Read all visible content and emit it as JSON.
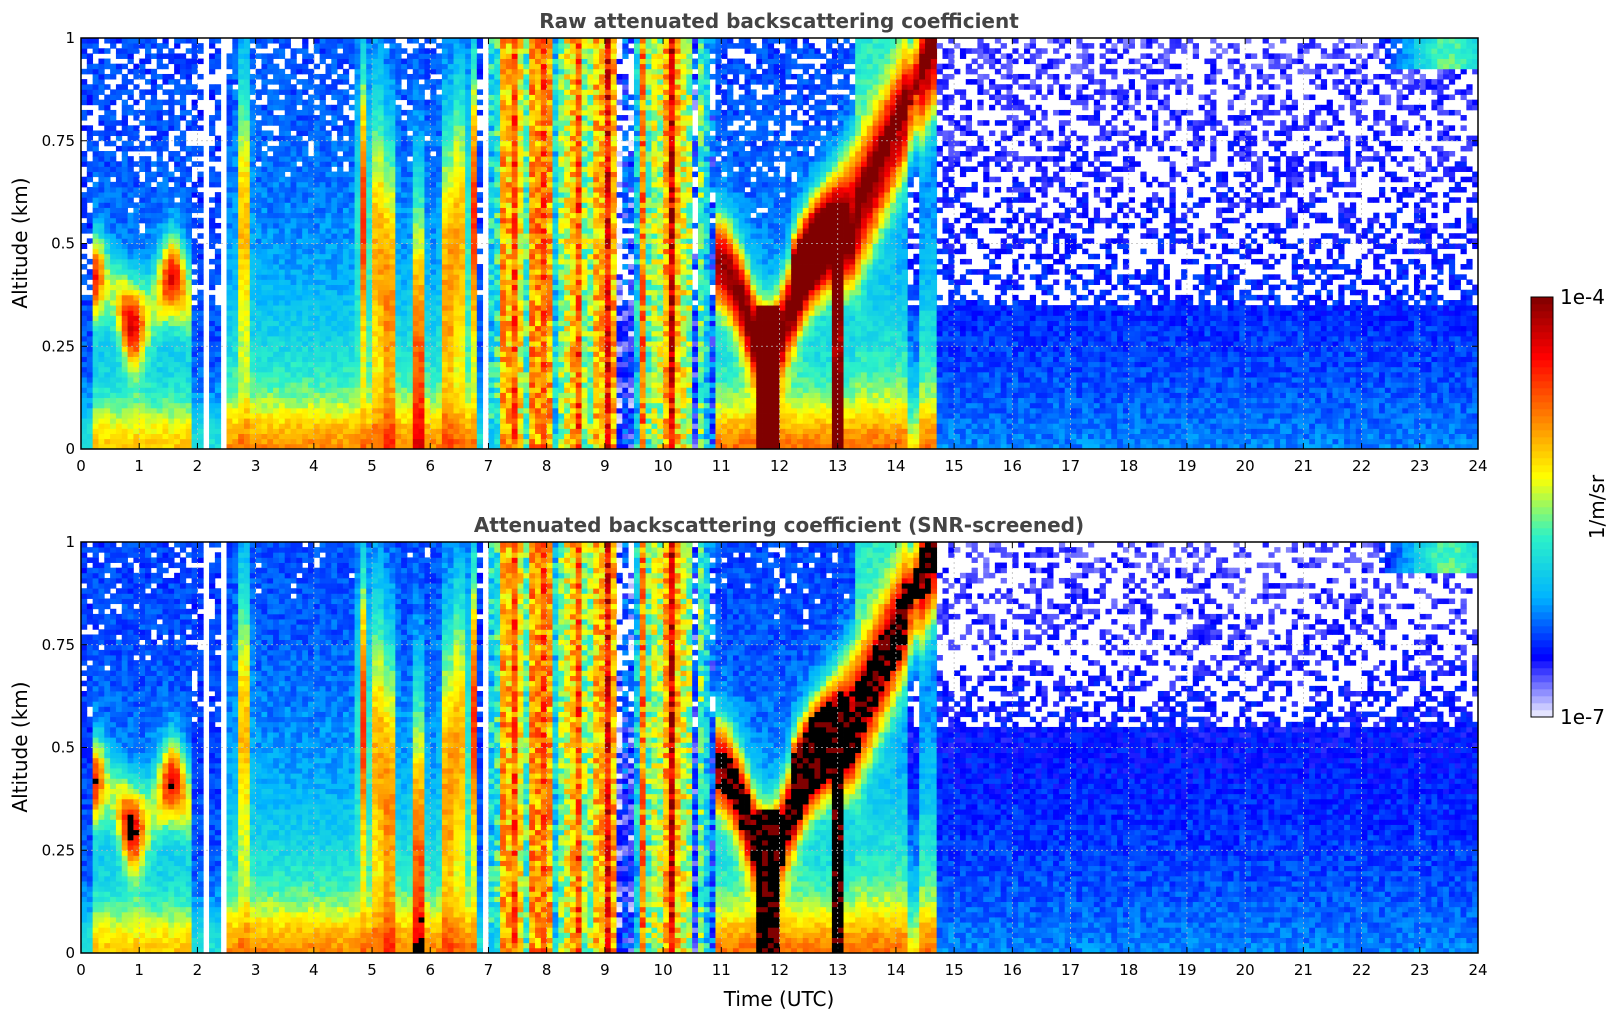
{
  "colors": {
    "jet_scale": [
      "#f2f2ff",
      "#0000ff",
      "#00b4ff",
      "#2cf2c8",
      "#ffff00",
      "#ff8000",
      "#ff0000",
      "#800000"
    ],
    "screened_saturation": "#000000",
    "grid": "#bbbbbb"
  },
  "chart_data": [
    {
      "type": "heatmap",
      "title": "Raw attenuated backscattering coefficient",
      "xlabel": "",
      "ylabel": "Altitude (km)",
      "xlim": [
        0,
        24
      ],
      "ylim": [
        0,
        1
      ],
      "x_ticks": [
        "0",
        "1",
        "2",
        "3",
        "4",
        "5",
        "6",
        "7",
        "8",
        "9",
        "10",
        "11",
        "12",
        "13",
        "14",
        "15",
        "16",
        "17",
        "18",
        "19",
        "20",
        "21",
        "22",
        "23",
        "24"
      ],
      "y_ticks": [
        "0",
        "0.25",
        "0.5",
        "0.75",
        "1"
      ],
      "grid": true,
      "colorbar": {
        "min_label": "1e-7",
        "max_label": "1e-4",
        "label": "1/m/sr",
        "scale": "log",
        "range": [
          1e-07,
          0.0001
        ]
      },
      "approx_features": [
        {
          "feature": "aerosol/cloud layer",
          "time_range": [
            0.3,
            1.8
          ],
          "altitude_km": [
            0.2,
            0.5
          ],
          "level": "high"
        },
        {
          "feature": "data gap",
          "time_range": [
            2.15,
            2.5
          ],
          "altitude_km": [
            0,
            1
          ]
        },
        {
          "feature": "data gap",
          "time_range": [
            6.85,
            7.0
          ],
          "altitude_km": [
            0,
            1
          ]
        },
        {
          "feature": "thick cloud / precipitation",
          "time_range": [
            7.0,
            10.8
          ],
          "altitude_km": [
            0,
            1
          ],
          "level": "very high"
        },
        {
          "feature": "descending cloud base",
          "time_range": [
            11.0,
            13.2
          ],
          "altitude_km": [
            0.1,
            0.5
          ],
          "level": "high"
        },
        {
          "feature": "rising cloud layer",
          "time_range": [
            13.0,
            14.6
          ],
          "altitude_km": [
            0.5,
            1.0
          ],
          "level": "high"
        },
        {
          "feature": "clear / noisy background",
          "time_range": [
            14.7,
            24
          ],
          "altitude_km": [
            0,
            1
          ],
          "level": "low"
        }
      ]
    },
    {
      "type": "heatmap",
      "title": "Attenuated backscattering coefficient (SNR-screened)",
      "xlabel": "Time (UTC)",
      "ylabel": "Altitude (km)",
      "xlim": [
        0,
        24
      ],
      "ylim": [
        0,
        1
      ],
      "x_ticks": [
        "0",
        "1",
        "2",
        "3",
        "4",
        "5",
        "6",
        "7",
        "8",
        "9",
        "10",
        "11",
        "12",
        "13",
        "14",
        "15",
        "16",
        "17",
        "18",
        "19",
        "20",
        "21",
        "22",
        "23",
        "24"
      ],
      "y_ticks": [
        "0",
        "0.25",
        "0.5",
        "0.75",
        "1"
      ],
      "grid": true,
      "colorbar": {
        "min_label": "1e-7",
        "max_label": "1e-4",
        "label": "1/m/sr",
        "scale": "log",
        "range": [
          1e-07,
          0.0001
        ]
      }
    }
  ]
}
